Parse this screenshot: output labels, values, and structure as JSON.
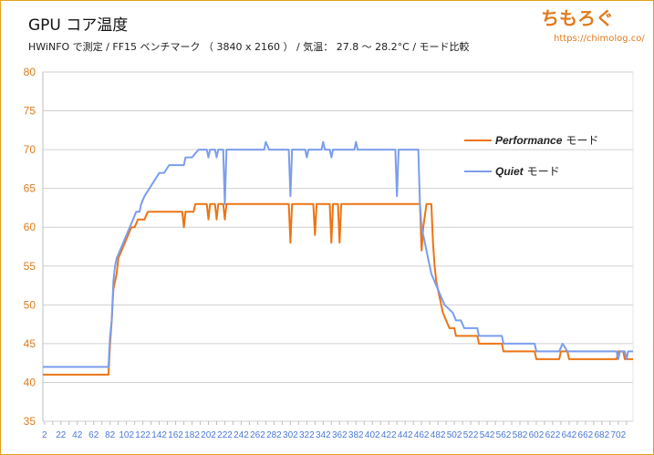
{
  "header": {
    "title": "GPU コア温度",
    "subtitle": "HWiNFO で測定 / FF15 ベンチマーク （ 3840 x 2160 ） / 気温： 27.8 ～ 28.2°C / モード比較"
  },
  "brand": {
    "name": "ちもろぐ",
    "url": "https://chimolog.co/"
  },
  "colors": {
    "performance": "#ed7414",
    "quiet": "#7b9ded",
    "ytick": "#e07b1c",
    "xtick": "#4a78d6",
    "grid": "#d0d0d0",
    "border": "#e0a21a"
  },
  "chart_data": {
    "type": "line",
    "title": "GPU コア温度",
    "xlabel": "",
    "ylabel": "",
    "ylim": [
      35,
      80
    ],
    "xlim": [
      0,
      720
    ],
    "grid": true,
    "legend_position": "right",
    "y_ticks": [
      35,
      40,
      45,
      50,
      55,
      60,
      65,
      70,
      75,
      80
    ],
    "x_ticks": [
      2,
      22,
      42,
      62,
      82,
      102,
      122,
      142,
      162,
      182,
      202,
      222,
      242,
      262,
      282,
      302,
      322,
      342,
      362,
      382,
      402,
      422,
      442,
      462,
      482,
      502,
      522,
      542,
      562,
      582,
      602,
      622,
      642,
      662,
      682,
      702
    ],
    "series": [
      {
        "name": "Performance",
        "suffix": "モード",
        "points": [
          [
            0,
            41
          ],
          [
            80,
            41
          ],
          [
            82,
            45
          ],
          [
            84,
            48
          ],
          [
            86,
            52
          ],
          [
            88,
            53
          ],
          [
            90,
            54
          ],
          [
            92,
            56
          ],
          [
            96,
            57
          ],
          [
            100,
            58
          ],
          [
            104,
            59
          ],
          [
            108,
            60
          ],
          [
            112,
            60
          ],
          [
            116,
            61
          ],
          [
            120,
            61
          ],
          [
            124,
            61
          ],
          [
            128,
            62
          ],
          [
            160,
            62
          ],
          [
            170,
            62
          ],
          [
            172,
            60
          ],
          [
            174,
            62
          ],
          [
            180,
            62
          ],
          [
            184,
            62
          ],
          [
            186,
            63
          ],
          [
            200,
            63
          ],
          [
            202,
            61
          ],
          [
            204,
            63
          ],
          [
            210,
            63
          ],
          [
            212,
            61
          ],
          [
            214,
            63
          ],
          [
            220,
            63
          ],
          [
            222,
            61
          ],
          [
            224,
            63
          ],
          [
            250,
            63
          ],
          [
            260,
            63
          ],
          [
            290,
            63
          ],
          [
            300,
            63
          ],
          [
            302,
            58
          ],
          [
            304,
            63
          ],
          [
            320,
            63
          ],
          [
            330,
            63
          ],
          [
            332,
            59
          ],
          [
            334,
            63
          ],
          [
            350,
            63
          ],
          [
            352,
            58
          ],
          [
            354,
            63
          ],
          [
            360,
            63
          ],
          [
            362,
            58
          ],
          [
            364,
            63
          ],
          [
            400,
            63
          ],
          [
            440,
            63
          ],
          [
            460,
            63
          ],
          [
            462,
            57
          ],
          [
            464,
            60
          ],
          [
            468,
            63
          ],
          [
            474,
            63
          ],
          [
            476,
            58
          ],
          [
            478,
            55
          ],
          [
            480,
            53
          ],
          [
            484,
            51
          ],
          [
            488,
            49
          ],
          [
            492,
            48
          ],
          [
            496,
            47
          ],
          [
            502,
            47
          ],
          [
            504,
            46
          ],
          [
            530,
            46
          ],
          [
            532,
            45
          ],
          [
            560,
            45
          ],
          [
            562,
            44
          ],
          [
            570,
            44
          ],
          [
            600,
            44
          ],
          [
            602,
            43
          ],
          [
            620,
            43
          ],
          [
            630,
            43
          ],
          [
            632,
            44
          ],
          [
            640,
            44
          ],
          [
            642,
            43
          ],
          [
            700,
            43
          ],
          [
            702,
            44
          ],
          [
            708,
            44
          ],
          [
            710,
            43
          ],
          [
            720,
            43
          ]
        ]
      },
      {
        "name": "Quiet",
        "suffix": "モード",
        "points": [
          [
            0,
            42
          ],
          [
            80,
            42
          ],
          [
            82,
            46
          ],
          [
            84,
            48
          ],
          [
            86,
            53
          ],
          [
            88,
            55
          ],
          [
            90,
            56
          ],
          [
            94,
            57
          ],
          [
            98,
            58
          ],
          [
            102,
            59
          ],
          [
            106,
            60
          ],
          [
            110,
            61
          ],
          [
            114,
            62
          ],
          [
            118,
            62
          ],
          [
            120,
            63
          ],
          [
            124,
            64
          ],
          [
            130,
            65
          ],
          [
            136,
            66
          ],
          [
            142,
            67
          ],
          [
            148,
            67
          ],
          [
            154,
            68
          ],
          [
            162,
            68
          ],
          [
            172,
            68
          ],
          [
            174,
            69
          ],
          [
            182,
            69
          ],
          [
            190,
            70
          ],
          [
            200,
            70
          ],
          [
            202,
            69
          ],
          [
            204,
            70
          ],
          [
            210,
            70
          ],
          [
            212,
            69
          ],
          [
            214,
            70
          ],
          [
            220,
            70
          ],
          [
            222,
            63
          ],
          [
            224,
            70
          ],
          [
            240,
            70
          ],
          [
            260,
            70
          ],
          [
            270,
            70
          ],
          [
            272,
            71
          ],
          [
            276,
            70
          ],
          [
            300,
            70
          ],
          [
            302,
            64
          ],
          [
            304,
            70
          ],
          [
            320,
            70
          ],
          [
            322,
            69
          ],
          [
            324,
            70
          ],
          [
            340,
            70
          ],
          [
            342,
            71
          ],
          [
            344,
            70
          ],
          [
            350,
            70
          ],
          [
            352,
            69
          ],
          [
            354,
            70
          ],
          [
            380,
            70
          ],
          [
            382,
            71
          ],
          [
            384,
            70
          ],
          [
            420,
            70
          ],
          [
            430,
            70
          ],
          [
            432,
            64
          ],
          [
            434,
            70
          ],
          [
            458,
            70
          ],
          [
            460,
            63
          ],
          [
            462,
            60
          ],
          [
            466,
            58
          ],
          [
            470,
            56
          ],
          [
            474,
            54
          ],
          [
            478,
            53
          ],
          [
            482,
            52
          ],
          [
            486,
            51
          ],
          [
            490,
            50
          ],
          [
            500,
            49
          ],
          [
            504,
            48
          ],
          [
            510,
            48
          ],
          [
            514,
            47
          ],
          [
            530,
            47
          ],
          [
            532,
            46
          ],
          [
            560,
            46
          ],
          [
            562,
            45
          ],
          [
            580,
            45
          ],
          [
            600,
            45
          ],
          [
            602,
            44
          ],
          [
            630,
            44
          ],
          [
            634,
            45
          ],
          [
            640,
            44
          ],
          [
            700,
            44
          ],
          [
            702,
            43
          ],
          [
            704,
            44
          ],
          [
            710,
            44
          ],
          [
            712,
            43
          ],
          [
            714,
            44
          ],
          [
            720,
            44
          ]
        ]
      }
    ]
  }
}
